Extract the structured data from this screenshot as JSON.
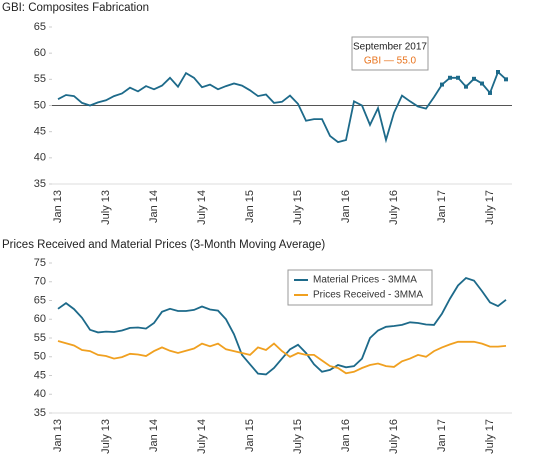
{
  "chart_data": [
    {
      "type": "line",
      "title": "GBI: Composites Fabrication",
      "categories": [
        "Jan 13",
        null,
        null,
        null,
        null,
        null,
        "July 13",
        null,
        null,
        null,
        null,
        null,
        "Jan 14",
        null,
        null,
        null,
        null,
        null,
        "July 14",
        null,
        null,
        null,
        null,
        null,
        "Jan 15",
        null,
        null,
        null,
        null,
        null,
        "July 15",
        null,
        null,
        null,
        null,
        null,
        "Jan 16",
        null,
        null,
        null,
        null,
        null,
        "July 16",
        null,
        null,
        null,
        null,
        null,
        "Jan 17",
        null,
        null,
        null,
        null,
        null,
        "July 17",
        null,
        null
      ],
      "series": [
        {
          "name": "GBI",
          "color": "#1d6a8a",
          "values": [
            51.2,
            52.0,
            51.8,
            50.5,
            50.0,
            50.6,
            51.0,
            51.8,
            52.3,
            53.4,
            52.7,
            53.7,
            53.1,
            53.8,
            55.3,
            53.6,
            56.2,
            55.3,
            53.5,
            54.0,
            53.1,
            53.7,
            54.2,
            53.8,
            52.9,
            51.8,
            52.1,
            50.5,
            50.7,
            51.9,
            50.3,
            47.1,
            47.4,
            47.4,
            44.2,
            43.0,
            43.4,
            50.8,
            50.0,
            46.3,
            49.5,
            43.4,
            48.6,
            51.9,
            50.8,
            49.8,
            49.4,
            51.6,
            54.0,
            55.3,
            55.3,
            53.6,
            55.1,
            54.2,
            52.4,
            56.4,
            55.0
          ]
        }
      ],
      "marked_from": "Jan 17",
      "hline": 50,
      "ylim": [
        35,
        65
      ],
      "yticks": [
        35,
        40,
        45,
        50,
        55,
        60,
        65
      ],
      "annotations": [
        {
          "text": "September 2017",
          "color": "#222222"
        },
        {
          "text": "GBI — 55.0",
          "color": "#e8731c"
        }
      ]
    },
    {
      "type": "line",
      "title": "Prices Received and Material Prices (3-Month Moving Average)",
      "categories": [
        "Jan 13",
        null,
        null,
        null,
        null,
        null,
        "July 13",
        null,
        null,
        null,
        null,
        null,
        "Jan 14",
        null,
        null,
        null,
        null,
        null,
        "July 14",
        null,
        null,
        null,
        null,
        null,
        "Jan 15",
        null,
        null,
        null,
        null,
        null,
        "July 15",
        null,
        null,
        null,
        null,
        null,
        "Jan 16",
        null,
        null,
        null,
        null,
        null,
        "July 16",
        null,
        null,
        null,
        null,
        null,
        "Jan 17",
        null,
        null,
        null,
        null,
        null,
        "July 17",
        null,
        null
      ],
      "series": [
        {
          "name": "Material Prices - 3MMA",
          "color": "#1d6a8a",
          "values": [
            62.8,
            64.3,
            62.7,
            60.4,
            57.2,
            56.5,
            56.7,
            56.6,
            57.0,
            57.7,
            57.8,
            57.5,
            59.0,
            62.0,
            62.8,
            62.2,
            62.2,
            62.5,
            63.4,
            62.6,
            62.3,
            60.0,
            56.0,
            50.5,
            48.0,
            45.5,
            45.3,
            47.0,
            49.5,
            52.0,
            53.2,
            51.0,
            48.0,
            46.0,
            46.5,
            47.8,
            47.2,
            47.5,
            49.5,
            55.0,
            57.0,
            58.0,
            58.2,
            58.5,
            59.2,
            59.0,
            58.6,
            58.5,
            61.5,
            65.5,
            69.0,
            71.0,
            70.3,
            67.5,
            64.5,
            63.5,
            65.2
          ]
        },
        {
          "name": "Prices Received - 3MMA",
          "color": "#f0a020",
          "values": [
            54.2,
            53.6,
            53.0,
            51.8,
            51.5,
            50.5,
            50.2,
            49.5,
            49.9,
            50.8,
            50.6,
            50.2,
            51.5,
            52.5,
            51.6,
            51.0,
            51.6,
            52.2,
            53.5,
            52.8,
            53.5,
            52.0,
            51.5,
            51.0,
            50.5,
            52.5,
            51.8,
            53.5,
            51.5,
            50.0,
            51.0,
            50.5,
            50.5,
            49.0,
            47.5,
            47.0,
            45.6,
            46.0,
            47.0,
            47.8,
            48.2,
            47.5,
            47.3,
            48.8,
            49.5,
            50.5,
            50.0,
            51.5,
            52.5,
            53.3,
            54.0,
            54.0,
            54.0,
            53.5,
            52.7,
            52.7,
            52.9
          ]
        }
      ],
      "ylim": [
        35,
        75
      ],
      "yticks": [
        35,
        40,
        45,
        50,
        55,
        60,
        65,
        70,
        75
      ],
      "legend": "upper right"
    }
  ]
}
